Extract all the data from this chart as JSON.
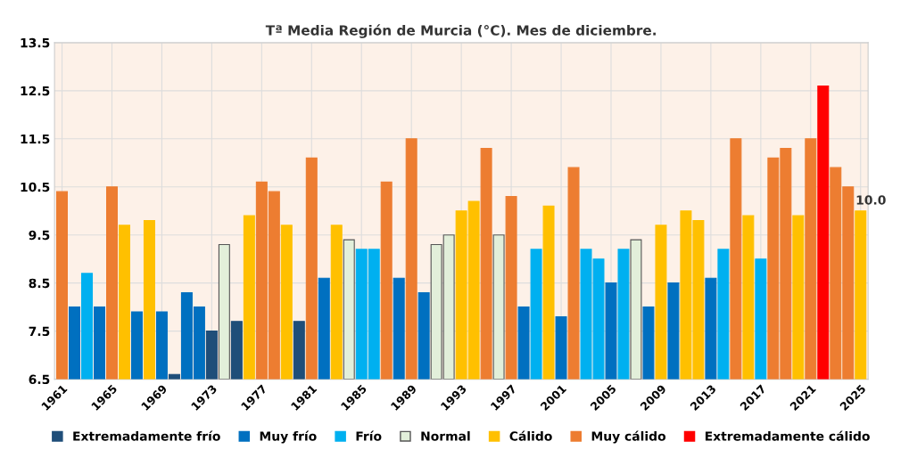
{
  "chart_data": {
    "type": "bar",
    "title": "Tª Media Región de Murcia (°C). Mes de diciembre.",
    "categories": [
      "1961",
      null,
      null,
      null,
      "1965",
      null,
      null,
      null,
      "1969",
      null,
      null,
      null,
      "1973",
      null,
      null,
      null,
      "1977",
      null,
      null,
      null,
      "1981",
      null,
      null,
      null,
      "1985",
      null,
      null,
      null,
      "1989",
      null,
      null,
      null,
      "1993",
      null,
      null,
      null,
      "1997",
      null,
      null,
      null,
      "2001",
      null,
      null,
      null,
      "2005",
      null,
      null,
      null,
      "2009",
      null,
      null,
      null,
      "2013",
      null,
      null,
      null,
      "2017",
      null,
      null,
      null,
      "2021",
      null,
      null,
      null,
      "2025"
    ],
    "series": [
      {
        "name": "Extremadamente frío",
        "color": "#1f4e79",
        "values": [
          null,
          null,
          null,
          null,
          null,
          null,
          null,
          null,
          null,
          6.6,
          null,
          null,
          7.5,
          null,
          7.7,
          null,
          null,
          null,
          null,
          7.7,
          null,
          null,
          null,
          null,
          null,
          null,
          null,
          null,
          null,
          null,
          null,
          null,
          null,
          null,
          null,
          null,
          null,
          null,
          null,
          null,
          null,
          null,
          null,
          null,
          null,
          null,
          null,
          null,
          null,
          null,
          null,
          null,
          null,
          null,
          null,
          null,
          null,
          null,
          null,
          null,
          null,
          null,
          null,
          null,
          null
        ]
      },
      {
        "name": "Muy frío",
        "color": "#0070c0",
        "values": [
          null,
          8.0,
          null,
          8.0,
          null,
          null,
          7.9,
          null,
          7.9,
          null,
          8.3,
          8.0,
          null,
          null,
          null,
          null,
          null,
          null,
          null,
          null,
          null,
          8.6,
          null,
          null,
          null,
          null,
          null,
          8.6,
          null,
          8.3,
          null,
          null,
          null,
          null,
          null,
          null,
          null,
          8.0,
          null,
          null,
          7.8,
          null,
          null,
          null,
          8.5,
          null,
          null,
          8.0,
          null,
          8.5,
          null,
          null,
          8.6,
          null,
          null,
          null,
          null,
          null,
          null,
          null,
          null,
          null,
          null,
          null,
          null
        ]
      },
      {
        "name": "Frío",
        "color": "#00b0f0",
        "values": [
          null,
          null,
          8.7,
          null,
          null,
          null,
          null,
          null,
          null,
          null,
          null,
          null,
          null,
          null,
          null,
          null,
          null,
          null,
          null,
          null,
          null,
          null,
          null,
          null,
          9.2,
          9.2,
          null,
          null,
          null,
          null,
          null,
          null,
          null,
          null,
          null,
          null,
          null,
          null,
          9.2,
          null,
          null,
          null,
          9.2,
          9.0,
          null,
          9.2,
          null,
          null,
          null,
          null,
          null,
          null,
          null,
          9.2,
          null,
          null,
          9.0,
          null,
          null,
          null,
          null,
          null,
          null,
          null,
          null
        ]
      },
      {
        "name": "Normal",
        "color": "#e2efda",
        "values": [
          null,
          null,
          null,
          null,
          null,
          null,
          null,
          null,
          null,
          null,
          null,
          null,
          null,
          9.3,
          null,
          null,
          null,
          null,
          null,
          null,
          null,
          null,
          null,
          9.4,
          null,
          null,
          null,
          null,
          null,
          null,
          9.3,
          9.5,
          null,
          null,
          null,
          9.5,
          null,
          null,
          null,
          null,
          null,
          null,
          null,
          null,
          null,
          null,
          9.4,
          null,
          null,
          null,
          null,
          null,
          null,
          null,
          null,
          null,
          null,
          null,
          null,
          null,
          null,
          null,
          null,
          null,
          null
        ]
      },
      {
        "name": "Cálido",
        "color": "#ffc000",
        "values": [
          null,
          null,
          null,
          null,
          null,
          9.7,
          null,
          9.8,
          null,
          null,
          null,
          null,
          null,
          null,
          null,
          9.9,
          null,
          null,
          9.7,
          null,
          null,
          null,
          9.7,
          null,
          null,
          null,
          null,
          null,
          null,
          null,
          null,
          null,
          10.0,
          10.2,
          null,
          null,
          null,
          null,
          null,
          10.1,
          null,
          null,
          null,
          null,
          null,
          null,
          null,
          null,
          9.7,
          null,
          10.0,
          9.8,
          null,
          null,
          null,
          9.9,
          null,
          null,
          null,
          9.9,
          null,
          null,
          null,
          null,
          10.0
        ],
        "value_labels": [
          null,
          null,
          null,
          null,
          null,
          null,
          null,
          null,
          null,
          null,
          null,
          null,
          null,
          null,
          null,
          null,
          null,
          null,
          null,
          null,
          null,
          null,
          null,
          null,
          null,
          null,
          null,
          null,
          null,
          null,
          null,
          null,
          null,
          null,
          null,
          null,
          null,
          null,
          null,
          null,
          null,
          null,
          null,
          null,
          null,
          null,
          null,
          null,
          null,
          null,
          null,
          null,
          null,
          null,
          null,
          null,
          null,
          null,
          null,
          null,
          null,
          null,
          null,
          null,
          "10.0"
        ]
      },
      {
        "name": "Muy cálido",
        "color": "#ed7d31",
        "values": [
          10.4,
          null,
          null,
          null,
          10.5,
          null,
          null,
          null,
          null,
          null,
          null,
          null,
          null,
          null,
          null,
          null,
          10.6,
          10.4,
          null,
          null,
          11.1,
          null,
          null,
          null,
          null,
          null,
          10.6,
          null,
          11.5,
          null,
          null,
          null,
          null,
          null,
          11.3,
          null,
          10.3,
          null,
          null,
          null,
          null,
          10.9,
          null,
          null,
          null,
          null,
          null,
          null,
          null,
          null,
          null,
          null,
          null,
          null,
          11.5,
          null,
          null,
          11.1,
          11.3,
          null,
          11.5,
          null,
          10.9,
          10.5,
          null
        ]
      },
      {
        "name": "Extremadamente cálido",
        "color": "#ff0000",
        "values": [
          null,
          null,
          null,
          null,
          null,
          null,
          null,
          null,
          null,
          null,
          null,
          null,
          null,
          null,
          null,
          null,
          null,
          null,
          null,
          null,
          null,
          null,
          null,
          null,
          null,
          null,
          null,
          null,
          null,
          null,
          null,
          null,
          null,
          null,
          null,
          null,
          null,
          null,
          null,
          null,
          null,
          null,
          null,
          null,
          null,
          null,
          null,
          null,
          null,
          null,
          null,
          null,
          null,
          null,
          null,
          null,
          null,
          null,
          null,
          null,
          null,
          12.6,
          null,
          null,
          null
        ]
      }
    ],
    "ylim": [
      6.5,
      13.5
    ],
    "yticks": [
      6.5,
      7.5,
      8.5,
      9.5,
      10.5,
      11.5,
      12.5,
      13.5
    ],
    "grid": true,
    "legend": "bottom"
  }
}
